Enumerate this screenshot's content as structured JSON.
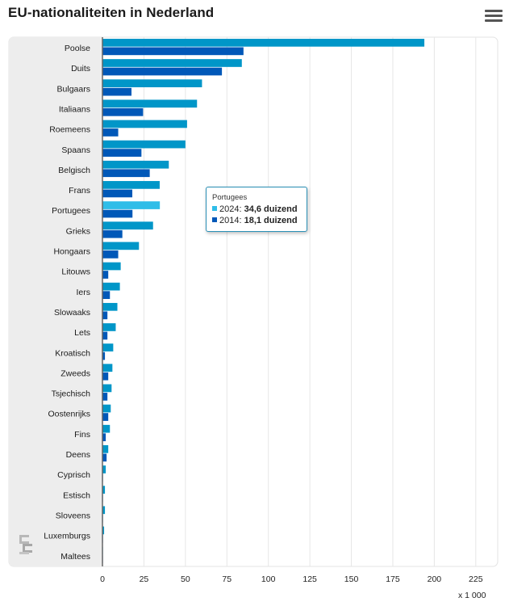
{
  "header": {
    "title": "EU-nationaliteiten in Nederland",
    "menu_icon": "hamburger-menu-icon"
  },
  "chart_data": {
    "type": "bar",
    "orientation": "horizontal",
    "title": "EU-nationaliteiten in Nederland",
    "categories": [
      "Poolse",
      "Duits",
      "Bulgaars",
      "Italiaans",
      "Roemeens",
      "Spaans",
      "Belgisch",
      "Frans",
      "Portugees",
      "Grieks",
      "Hongaars",
      "Litouws",
      "Iers",
      "Slowaaks",
      "Lets",
      "Kroatisch",
      "Zweeds",
      "Tsjechisch",
      "Oostenrijks",
      "Fins",
      "Deens",
      "Cyprisch",
      "Estisch",
      "Sloveens",
      "Luxemburgs",
      "Maltees"
    ],
    "series": [
      {
        "name": "2024",
        "color": "#0096c8",
        "values": [
          194,
          84,
          60,
          57,
          51,
          50,
          40,
          34.5,
          34.6,
          30.5,
          22,
          11,
          10.5,
          9,
          8,
          6.5,
          6,
          5.5,
          5,
          4.5,
          3.5,
          2,
          1.5,
          1.5,
          1,
          0.3
        ]
      },
      {
        "name": "2014",
        "color": "#0058b8",
        "values": [
          85,
          72,
          17.5,
          24.5,
          9.5,
          23.5,
          28.5,
          18,
          18.1,
          12,
          9.5,
          3.5,
          4.5,
          3,
          3,
          1.5,
          3.5,
          3,
          3.5,
          2,
          2.5,
          0.3,
          0.3,
          0.3,
          0.3,
          0.1
        ]
      }
    ],
    "highlight_category": "Portugees",
    "highlight_color": "#2fbde8",
    "x_ticks": [
      0,
      25,
      50,
      75,
      100,
      125,
      150,
      175,
      200,
      225
    ],
    "xlim": [
      0,
      225
    ],
    "x_unit": "x 1 000",
    "grid": true
  },
  "tooltip": {
    "category": "Portugees",
    "rows": [
      {
        "series": "2024",
        "label": "2024:",
        "value": "34,6 duizend",
        "color": "#2fbde8"
      },
      {
        "series": "2014",
        "label": "2014:",
        "value": "18,1 duizend",
        "color": "#0058b8"
      }
    ]
  },
  "branding": {
    "logo_icon": "cbs-logo-icon"
  }
}
